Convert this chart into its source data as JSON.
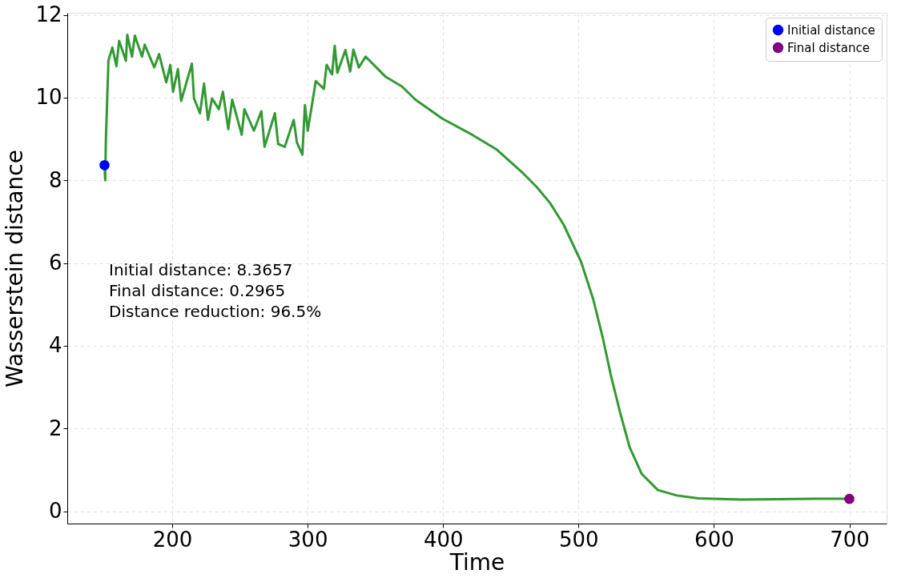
{
  "chart_data": {
    "type": "line",
    "xlabel": "Time",
    "ylabel": "Wasserstein distance",
    "xlim": [
      122.5,
      727.5
    ],
    "ylim": [
      -0.3,
      12.05
    ],
    "xticks": [
      200,
      300,
      400,
      500,
      600,
      700
    ],
    "yticks": [
      0,
      2,
      4,
      6,
      8,
      10,
      12
    ],
    "grid": true,
    "legend": "top right",
    "annotations": [
      "Initial distance: 8.3657\nFinal distance: 0.2965\nDistance reduction: 96.5%"
    ],
    "series": [
      {
        "type": "line",
        "color": "#339933",
        "line_style": "solid",
        "marker": "none",
        "x": [
          150,
          150.5,
          151,
          152.9,
          155.8,
          158.8,
          160.8,
          165.8,
          166.8,
          170.3,
          172.4,
          177.7,
          179.7,
          186.7,
          190.3,
          195.6,
          198.6,
          200.6,
          204.2,
          206.6,
          214.5,
          216.1,
          220.5,
          223.5,
          226.4,
          229.4,
          234.4,
          237.4,
          241.4,
          244.3,
          251.3,
          253.3,
          260.3,
          265.8,
          268.2,
          275.8,
          278.2,
          283.1,
          289.7,
          292.1,
          296.1,
          298,
          300.1,
          306,
          312,
          314,
          318,
          320,
          321.9,
          327.9,
          331.4,
          333.8,
          337.8,
          342.8,
          349.8,
          357.7,
          369.6,
          379.6,
          399.5,
          419.4,
          439.3,
          459.1,
          469.1,
          479,
          489,
          501.9,
          510.9,
          517.8,
          523.8,
          530.7,
          537.7,
          546.7,
          558.6,
          572.5,
          588.4,
          620,
          650,
          680,
          700
        ],
        "values": [
          8.37,
          8.0,
          8.97,
          10.9,
          11.21,
          10.76,
          11.37,
          10.89,
          11.52,
          10.99,
          11.5,
          10.99,
          11.28,
          10.73,
          11.05,
          10.37,
          10.79,
          10.14,
          10.69,
          9.92,
          10.82,
          9.98,
          9.62,
          10.34,
          9.46,
          9.98,
          9.72,
          10.14,
          9.24,
          9.95,
          9.1,
          9.72,
          9.2,
          9.67,
          8.81,
          9.62,
          8.88,
          8.81,
          9.46,
          8.91,
          8.62,
          9.82,
          9.2,
          10.4,
          10.21,
          10.79,
          10.56,
          11.25,
          10.6,
          11.15,
          10.63,
          11.16,
          10.73,
          10.99,
          10.76,
          10.5,
          10.27,
          9.95,
          9.49,
          9.14,
          8.75,
          8.17,
          7.84,
          7.45,
          6.93,
          6.03,
          5.12,
          4.21,
          3.3,
          2.39,
          1.55,
          0.9,
          0.51,
          0.38,
          0.31,
          0.28,
          0.29,
          0.3,
          0.3
        ]
      },
      {
        "type": "scatter",
        "name": "Initial distance",
        "color": "#0000ff",
        "marker": "circle",
        "x": [
          150
        ],
        "values": [
          8.3657
        ]
      },
      {
        "type": "scatter",
        "name": "Final distance",
        "color": "#800080",
        "marker": "circle",
        "x": [
          700
        ],
        "values": [
          0.2965
        ]
      }
    ]
  }
}
